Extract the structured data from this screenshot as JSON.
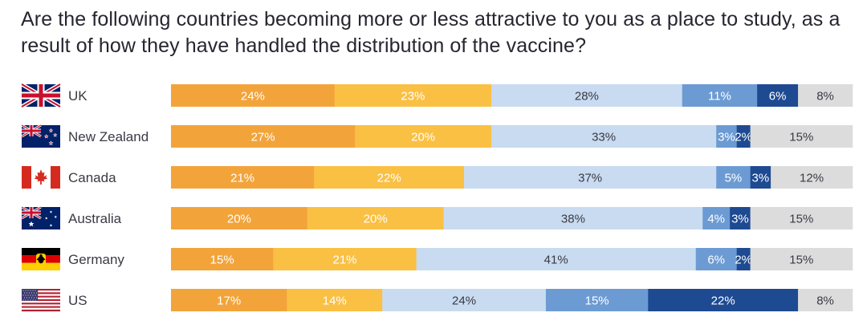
{
  "chart_data": {
    "type": "bar",
    "orientation": "horizontal",
    "stacked": true,
    "title": "Are the following countries becoming more or less attractive to you as a place to study, as a result of how they have handled the distribution of the vaccine?",
    "categories": [
      "UK",
      "New Zealand",
      "Canada",
      "Australia",
      "Germany",
      "US"
    ],
    "flag_icons": [
      "uk-flag-icon",
      "new-zealand-flag-icon",
      "canada-flag-icon",
      "australia-flag-icon",
      "germany-flag-icon",
      "us-flag-icon"
    ],
    "series": [
      {
        "color": "#f2a43b",
        "text_color": "#ffffff",
        "values": [
          24,
          27,
          21,
          20,
          15,
          17
        ]
      },
      {
        "color": "#fac044",
        "text_color": "#ffffff",
        "values": [
          23,
          20,
          22,
          20,
          21,
          14
        ]
      },
      {
        "color": "#c8dbf0",
        "text_color": "#3a3a44",
        "values": [
          28,
          33,
          37,
          38,
          41,
          24
        ]
      },
      {
        "color": "#6c9bd3",
        "text_color": "#ffffff",
        "values": [
          11,
          3,
          5,
          4,
          6,
          15
        ]
      },
      {
        "color": "#1e4a92",
        "text_color": "#ffffff",
        "values": [
          6,
          2,
          3,
          3,
          2,
          22
        ]
      },
      {
        "color": "#dcdcdc",
        "text_color": "#3a3a44",
        "values": [
          8,
          15,
          12,
          15,
          15,
          8
        ]
      }
    ],
    "value_suffix": "%",
    "xlim": [
      0,
      100
    ]
  }
}
